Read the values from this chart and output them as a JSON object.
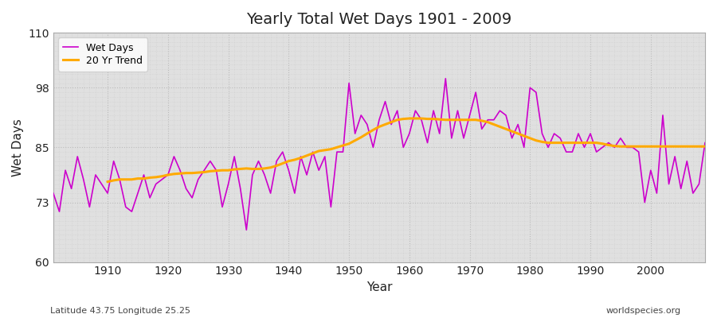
{
  "title": "Yearly Total Wet Days 1901 - 2009",
  "xlabel": "Year",
  "ylabel": "Wet Days",
  "lat_lon_label": "Latitude 43.75 Longitude 25.25",
  "watermark": "worldspecies.org",
  "ylim": [
    60,
    110
  ],
  "yticks": [
    60,
    73,
    85,
    98,
    110
  ],
  "fig_bg_color": "#ffffff",
  "plot_bg_color": "#e0e0e0",
  "line_color_wet": "#cc00cc",
  "line_color_trend": "#ffaa00",
  "years": [
    1901,
    1902,
    1903,
    1904,
    1905,
    1906,
    1907,
    1908,
    1909,
    1910,
    1911,
    1912,
    1913,
    1914,
    1915,
    1916,
    1917,
    1918,
    1919,
    1920,
    1921,
    1922,
    1923,
    1924,
    1925,
    1926,
    1927,
    1928,
    1929,
    1930,
    1931,
    1932,
    1933,
    1934,
    1935,
    1936,
    1937,
    1938,
    1939,
    1940,
    1941,
    1942,
    1943,
    1944,
    1945,
    1946,
    1947,
    1948,
    1949,
    1950,
    1951,
    1952,
    1953,
    1954,
    1955,
    1956,
    1957,
    1958,
    1959,
    1960,
    1961,
    1962,
    1963,
    1964,
    1965,
    1966,
    1967,
    1968,
    1969,
    1970,
    1971,
    1972,
    1973,
    1974,
    1975,
    1976,
    1977,
    1978,
    1979,
    1980,
    1981,
    1982,
    1983,
    1984,
    1985,
    1986,
    1987,
    1988,
    1989,
    1990,
    1991,
    1992,
    1993,
    1994,
    1995,
    1996,
    1997,
    1998,
    1999,
    2000,
    2001,
    2002,
    2003,
    2004,
    2005,
    2006,
    2007,
    2008,
    2009
  ],
  "wet_days": [
    75,
    71,
    80,
    76,
    83,
    78,
    72,
    79,
    77,
    75,
    82,
    78,
    72,
    71,
    75,
    79,
    74,
    77,
    78,
    79,
    83,
    80,
    76,
    74,
    78,
    80,
    82,
    80,
    72,
    77,
    83,
    76,
    67,
    79,
    82,
    79,
    75,
    82,
    84,
    80,
    75,
    83,
    79,
    84,
    80,
    83,
    72,
    84,
    84,
    99,
    88,
    92,
    90,
    85,
    91,
    95,
    90,
    93,
    85,
    88,
    93,
    91,
    86,
    93,
    88,
    100,
    87,
    93,
    87,
    92,
    97,
    89,
    91,
    91,
    93,
    92,
    87,
    90,
    85,
    98,
    97,
    88,
    85,
    88,
    87,
    84,
    84,
    88,
    85,
    88,
    84,
    85,
    86,
    85,
    87,
    85,
    85,
    84,
    73,
    80,
    75,
    92,
    77,
    83,
    76,
    82,
    75,
    77,
    86
  ],
  "trend_years": [
    1910,
    1911,
    1912,
    1913,
    1914,
    1915,
    1916,
    1917,
    1918,
    1919,
    1920,
    1921,
    1922,
    1923,
    1924,
    1925,
    1926,
    1927,
    1928,
    1929,
    1930,
    1931,
    1932,
    1933,
    1934,
    1935,
    1936,
    1937,
    1938,
    1939,
    1940,
    1941,
    1942,
    1943,
    1944,
    1945,
    1946,
    1947,
    1948,
    1949,
    1950,
    1951,
    1952,
    1953,
    1954,
    1955,
    1956,
    1957,
    1958,
    1959,
    1960,
    1961,
    1962,
    1963,
    1964,
    1965,
    1966,
    1967,
    1968,
    1969,
    1970,
    1971,
    1972,
    1973,
    1974,
    1975,
    1976,
    1977,
    1978,
    1979,
    1980,
    1981,
    1982,
    1983,
    1984,
    1985,
    1986,
    1987,
    1988,
    1989,
    1990,
    1991,
    1992,
    1993,
    1994,
    1995,
    1996,
    1997,
    1998,
    1999,
    2000,
    2001,
    2002,
    2003,
    2004,
    2005,
    2006,
    2007,
    2008,
    2009
  ],
  "trend_values": [
    77.5,
    77.8,
    78.0,
    78.0,
    78.0,
    78.2,
    78.2,
    78.4,
    78.5,
    78.7,
    79.0,
    79.2,
    79.3,
    79.4,
    79.4,
    79.5,
    79.6,
    79.8,
    79.9,
    80.0,
    80.0,
    80.2,
    80.3,
    80.4,
    80.3,
    80.3,
    80.4,
    80.6,
    81.0,
    81.5,
    82.0,
    82.3,
    82.7,
    83.2,
    83.7,
    84.2,
    84.4,
    84.6,
    85.0,
    85.4,
    85.8,
    86.5,
    87.2,
    88.0,
    88.8,
    89.5,
    90.0,
    90.5,
    91.0,
    91.2,
    91.3,
    91.3,
    91.3,
    91.2,
    91.2,
    91.1,
    91.0,
    91.0,
    91.0,
    91.0,
    91.0,
    91.0,
    90.8,
    90.5,
    90.0,
    89.5,
    89.0,
    88.5,
    88.0,
    87.5,
    87.0,
    86.5,
    86.2,
    86.0,
    86.0,
    86.0,
    86.0,
    86.0,
    86.0,
    86.0,
    86.0,
    86.0,
    85.8,
    85.5,
    85.3,
    85.2,
    85.2,
    85.2,
    85.2,
    85.2,
    85.2,
    85.2,
    85.2,
    85.2,
    85.2,
    85.2,
    85.2,
    85.2,
    85.2,
    85.2
  ]
}
